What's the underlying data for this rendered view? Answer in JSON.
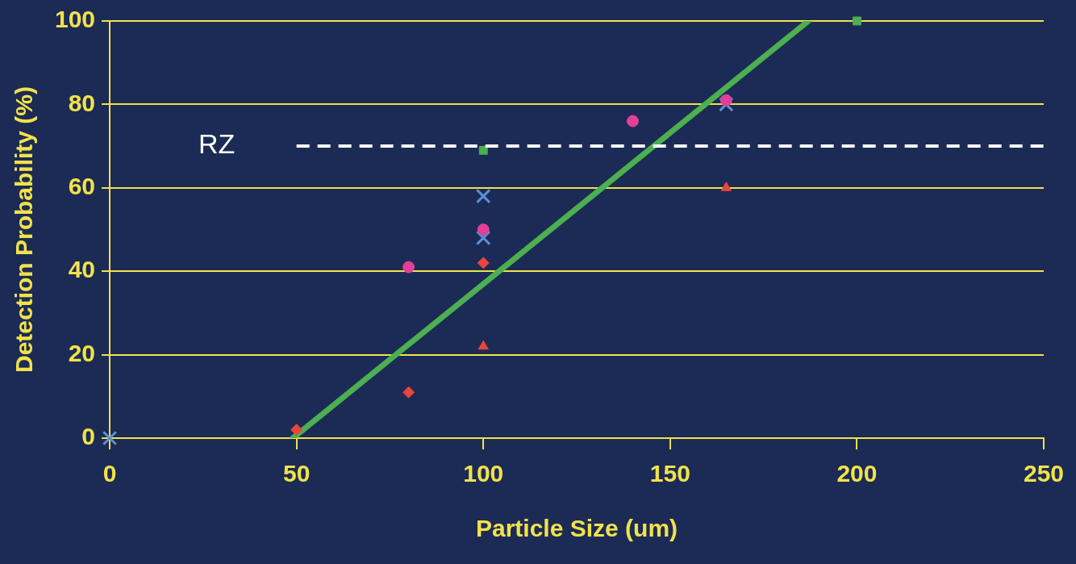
{
  "chart_data": {
    "type": "scatter",
    "xlabel": "Particle Size (um)",
    "ylabel": "Detection Probability (%)",
    "xlim": [
      0,
      250
    ],
    "xticks": [
      0,
      50,
      100,
      150,
      200,
      250
    ],
    "ylim": [
      0,
      100
    ],
    "yticks": [
      0,
      20,
      40,
      60,
      80,
      100
    ],
    "grid": "y",
    "legend": false,
    "series": [
      {
        "color": "#e8463c",
        "marker": "diamond",
        "x": [
          50,
          80,
          100
        ],
        "values": [
          2,
          11,
          42
        ]
      },
      {
        "color": "#e0409a",
        "marker": "circle",
        "x": [
          80,
          100,
          140,
          165
        ],
        "values": [
          41,
          50,
          76,
          81
        ]
      },
      {
        "color": "#e8463c",
        "marker": "triangle",
        "x": [
          100,
          165
        ],
        "values": [
          22,
          60
        ]
      },
      {
        "color": "#4caf50",
        "marker": "square",
        "x": [
          100,
          200
        ],
        "values": [
          69,
          100
        ]
      },
      {
        "color": "#5b8fd6",
        "marker": "cross",
        "x": [
          0,
          100,
          100,
          165
        ],
        "values": [
          0,
          58,
          48,
          80
        ]
      },
      {
        "type": "line",
        "color": "#4caf50",
        "marker": "none",
        "line_style": "solid",
        "x": [
          49,
          187
        ],
        "values": [
          0,
          100
        ]
      }
    ],
    "ref_lines": [
      {
        "axis": "y",
        "value": 70,
        "label": "RZ",
        "color": "#ffffff",
        "line_style": "dashed"
      }
    ]
  }
}
